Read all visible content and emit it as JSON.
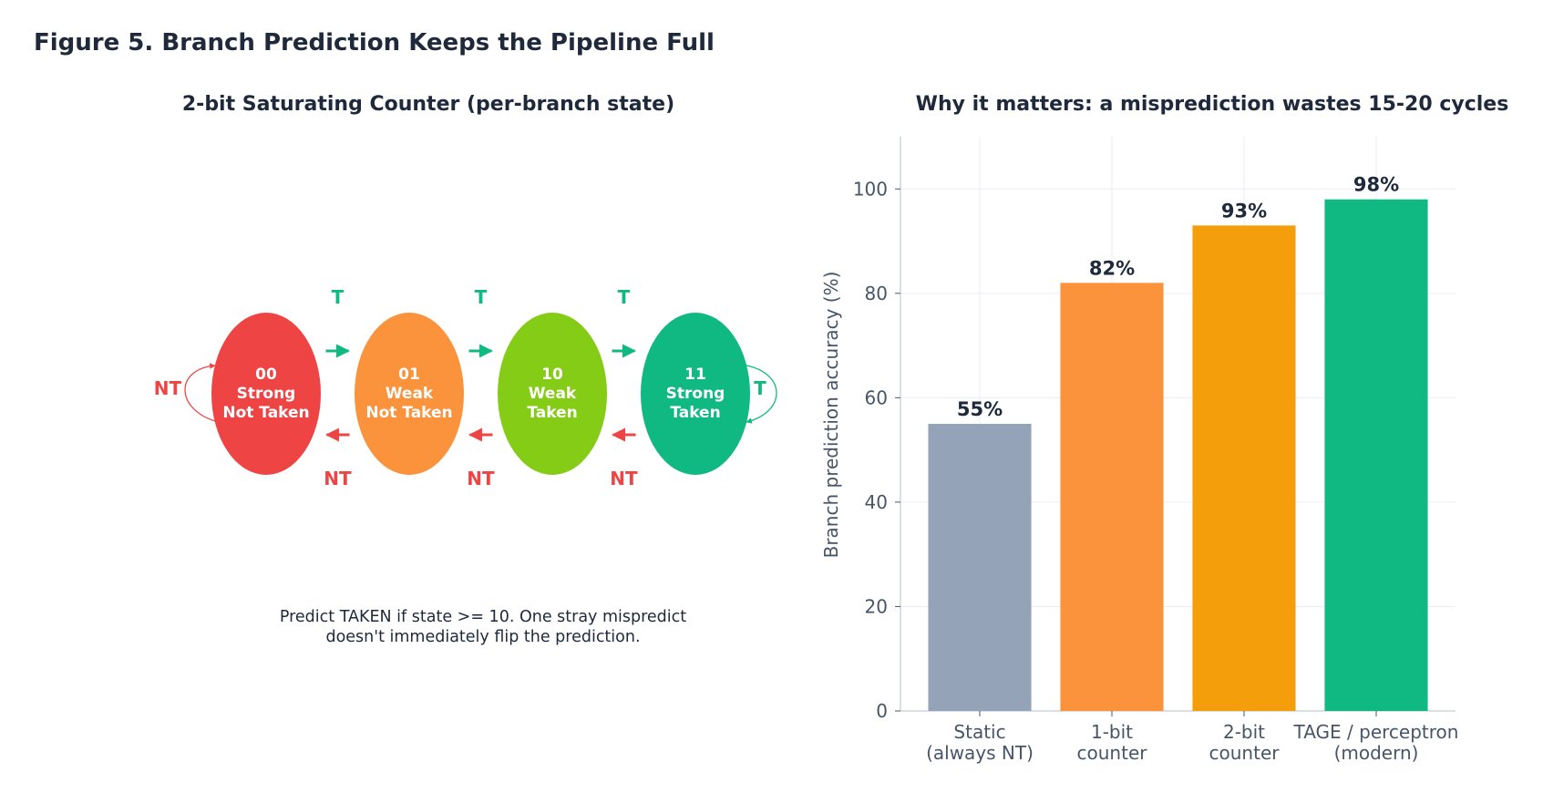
{
  "figure_title": "Figure 5. Branch Prediction Keeps the Pipeline Full",
  "diagram": {
    "title": "2-bit Saturating Counter (per-branch state)",
    "states": [
      {
        "code": "00",
        "line1": "Strong",
        "line2": "Not Taken",
        "color": "#ef4444"
      },
      {
        "code": "01",
        "line1": "Weak",
        "line2": "Not Taken",
        "color": "#fb923c"
      },
      {
        "code": "10",
        "line1": "Weak",
        "line2": "Taken",
        "color": "#84cc16"
      },
      {
        "code": "11",
        "line1": "Strong",
        "line2": "Taken",
        "color": "#10b981"
      }
    ],
    "taken_label": "T",
    "not_taken_label": "NT",
    "taken_color": "#10b981",
    "not_taken_color": "#ef4444",
    "caption_line1": "Predict TAKEN if state >= 10. One stray mispredict",
    "caption_line2": "doesn't immediately flip the prediction."
  },
  "chart_data": {
    "type": "bar",
    "title": "Why it matters: a misprediction wastes 15-20 cycles",
    "ylabel": "Branch prediction accuracy (%)",
    "xlabel": "",
    "categories": [
      [
        "Static",
        "(always NT)"
      ],
      [
        "1-bit",
        "counter"
      ],
      [
        "2-bit",
        "counter"
      ],
      [
        "TAGE / perceptron",
        "(modern)"
      ]
    ],
    "values": [
      55,
      82,
      93,
      98
    ],
    "value_labels": [
      "55%",
      "82%",
      "93%",
      "98%"
    ],
    "colors": [
      "#94a3b8",
      "#fb923c",
      "#f59e0b",
      "#10b981"
    ],
    "ylim": [
      0,
      110
    ],
    "yticks": [
      0,
      20,
      40,
      60,
      80,
      100
    ],
    "grid": true
  }
}
